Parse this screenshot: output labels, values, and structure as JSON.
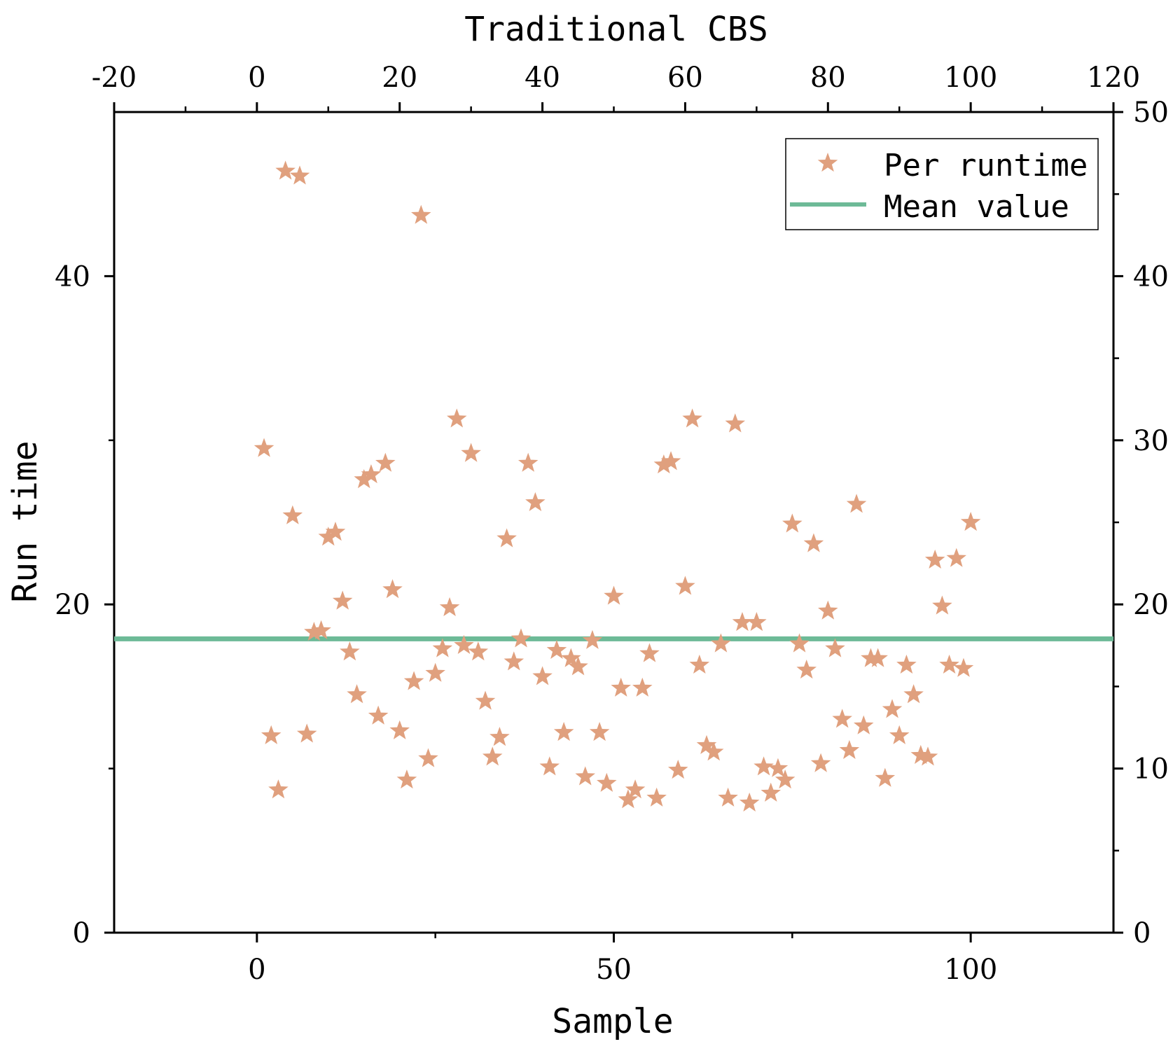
{
  "chart_data": {
    "type": "scatter",
    "title": "Traditional CBS",
    "xlabel": "Sample",
    "ylabel": "Run time",
    "xlim": [
      -20,
      120
    ],
    "ylim": [
      0,
      50
    ],
    "bottom_xticks": [
      0,
      50,
      100
    ],
    "top_xticks": [
      -20,
      0,
      20,
      40,
      60,
      80,
      100,
      120
    ],
    "left_yticks": [
      0,
      20,
      40
    ],
    "right_yticks": [
      0,
      10,
      20,
      30,
      40,
      50
    ],
    "grid": false,
    "legend_position": "top-right",
    "colors": {
      "points": "#E0A07E",
      "mean": "#6DBA97",
      "axis": "#000000"
    },
    "series": [
      {
        "name": "Per runtime",
        "marker": "star",
        "x": [
          1,
          2,
          3,
          4,
          5,
          6,
          7,
          8,
          9,
          10,
          11,
          12,
          13,
          14,
          15,
          16,
          17,
          18,
          19,
          20,
          21,
          22,
          23,
          24,
          25,
          26,
          27,
          28,
          29,
          30,
          31,
          32,
          33,
          34,
          35,
          36,
          37,
          38,
          39,
          40,
          41,
          42,
          43,
          44,
          45,
          46,
          47,
          48,
          49,
          50,
          51,
          52,
          53,
          54,
          55,
          56,
          57,
          58,
          59,
          60,
          61,
          62,
          63,
          64,
          65,
          66,
          67,
          68,
          69,
          70,
          71,
          72,
          73,
          74,
          75,
          76,
          77,
          78,
          79,
          80,
          81,
          82,
          83,
          84,
          85,
          86,
          87,
          88,
          89,
          90,
          91,
          92,
          93,
          94,
          95,
          96,
          97,
          98,
          99,
          100
        ],
        "y": [
          29.5,
          12.0,
          8.7,
          46.4,
          25.4,
          46.1,
          12.1,
          18.3,
          18.4,
          24.1,
          24.4,
          20.2,
          17.1,
          14.5,
          27.6,
          27.9,
          13.2,
          28.6,
          20.9,
          12.3,
          9.3,
          15.3,
          43.7,
          10.6,
          15.8,
          17.3,
          19.8,
          31.3,
          17.5,
          29.2,
          17.1,
          14.1,
          10.7,
          11.9,
          24.0,
          16.5,
          17.9,
          28.6,
          26.2,
          15.6,
          10.1,
          17.2,
          12.2,
          16.7,
          16.2,
          9.5,
          17.8,
          12.2,
          9.1,
          20.5,
          14.9,
          8.1,
          8.7,
          14.9,
          17.0,
          8.2,
          28.5,
          28.7,
          9.9,
          21.1,
          31.3,
          16.3,
          11.4,
          11.0,
          17.6,
          8.2,
          31.0,
          18.9,
          7.9,
          18.9,
          10.1,
          8.5,
          10.0,
          9.3,
          24.9,
          17.6,
          16.0,
          23.7,
          10.3,
          19.6,
          17.3,
          13.0,
          11.1,
          26.1,
          12.6,
          16.7,
          16.7,
          9.4,
          13.6,
          12.0,
          16.3,
          14.5,
          10.8,
          10.7,
          22.7,
          19.9,
          16.3,
          22.8,
          16.1,
          25.0
        ]
      },
      {
        "name": "Mean value",
        "type": "hline",
        "y": 17.9
      }
    ]
  }
}
